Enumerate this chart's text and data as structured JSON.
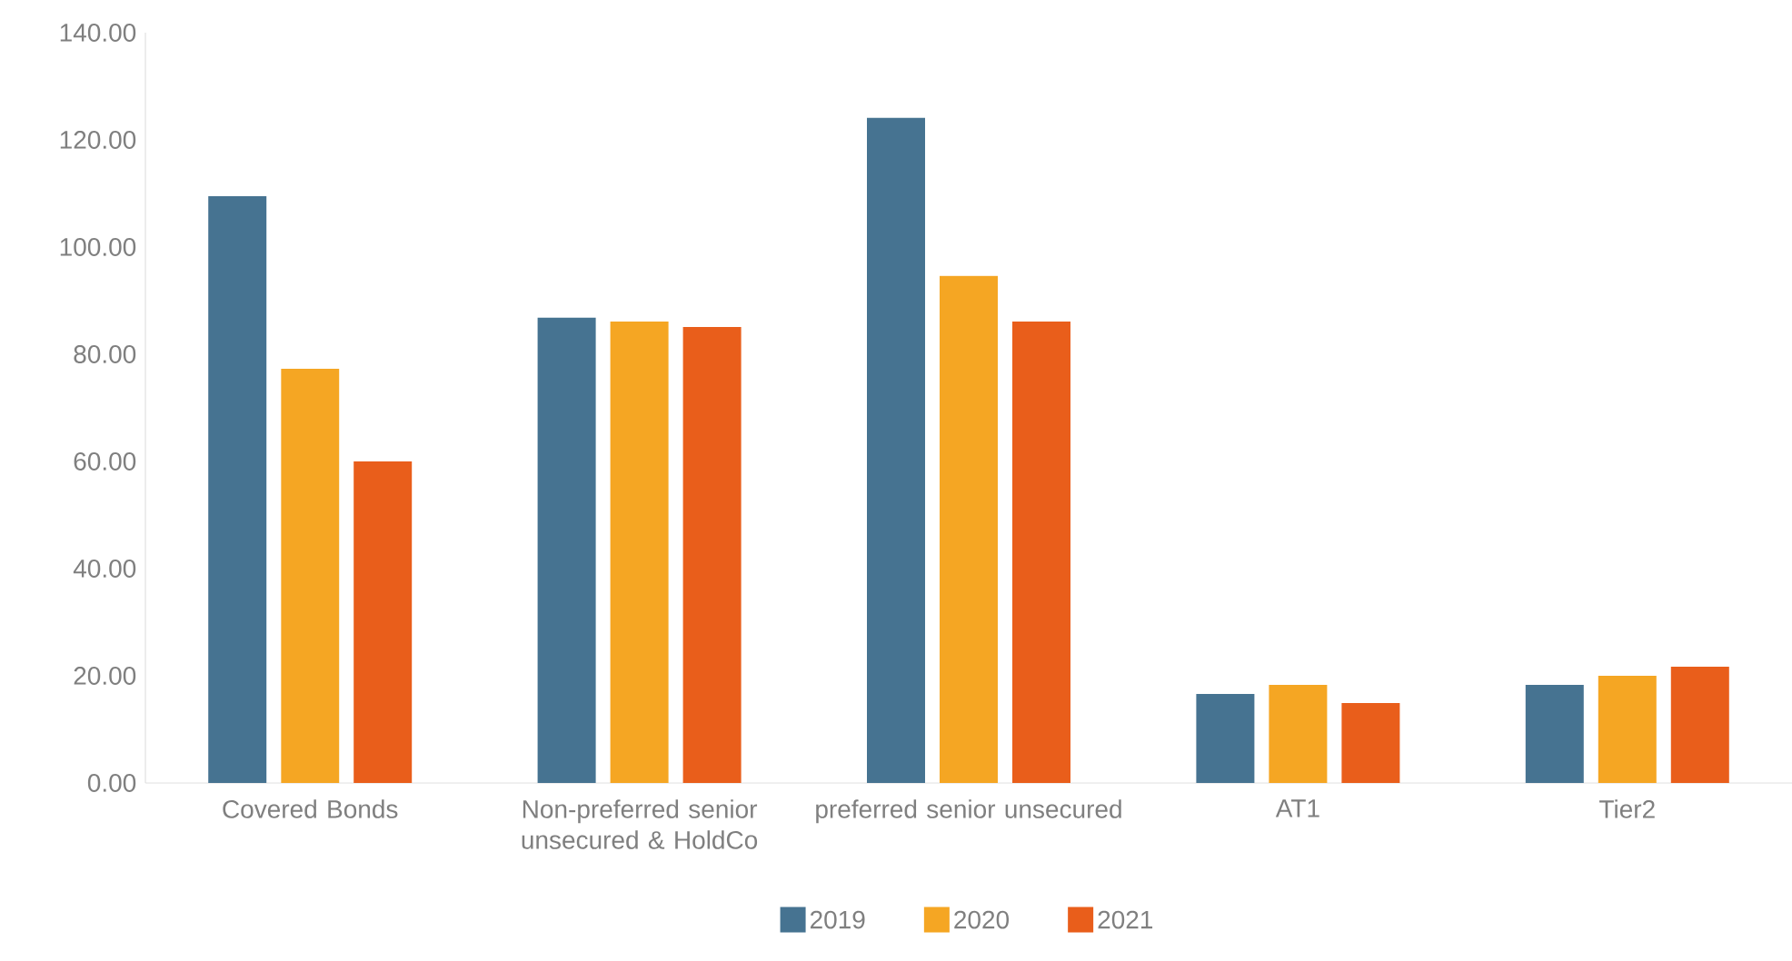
{
  "chart_data": {
    "type": "bar",
    "categories": [
      "Covered Bonds",
      "Non-preferred senior unsecured & HoldCo",
      "preferred senior unsecured",
      "AT1",
      "Tier2"
    ],
    "series": [
      {
        "name": "2019",
        "color": "#467391",
        "values": [
          109.5,
          86.8,
          124.1,
          16.6,
          18.3
        ]
      },
      {
        "name": "2020",
        "color": "#f5a623",
        "values": [
          77.3,
          86.1,
          94.6,
          18.3,
          20.0
        ]
      },
      {
        "name": "2021",
        "color": "#e95e1b",
        "values": [
          60.0,
          85.1,
          86.1,
          14.9,
          21.7
        ]
      }
    ],
    "ylim": [
      0,
      140
    ],
    "yticks": [
      {
        "value": 0,
        "label": "0.00"
      },
      {
        "value": 20,
        "label": "20.00"
      },
      {
        "value": 40,
        "label": "40.00"
      },
      {
        "value": 60,
        "label": "60.00"
      },
      {
        "value": 80,
        "label": "80.00"
      },
      {
        "value": 100,
        "label": "100.00"
      },
      {
        "value": 120,
        "label": "120.00"
      },
      {
        "value": 140,
        "label": "140.00"
      }
    ],
    "grid": false,
    "legend": "bottom"
  }
}
